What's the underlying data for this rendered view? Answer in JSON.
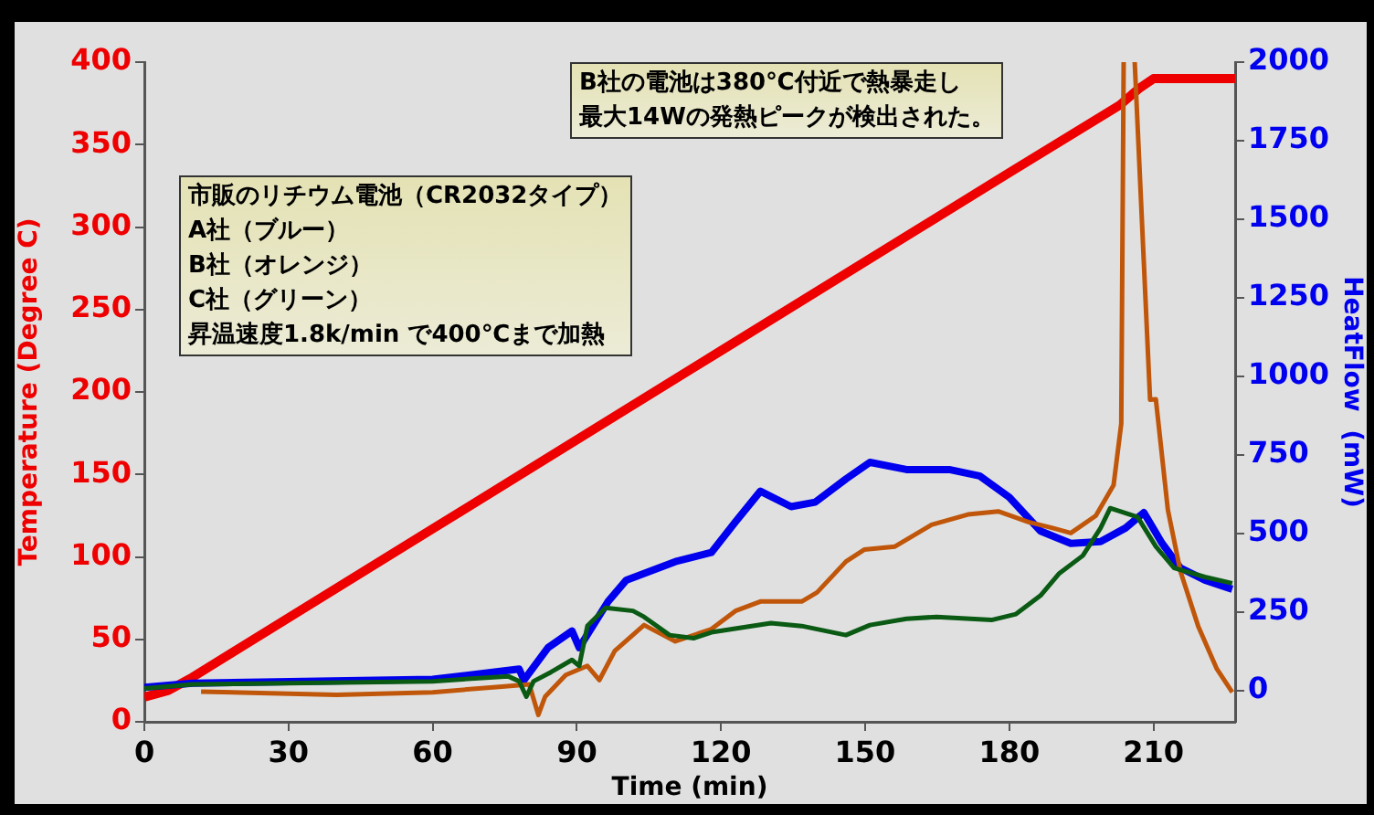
{
  "chart_data": {
    "type": "line",
    "xlabel": "Time (min)",
    "ylabel": "Temperature (Degree C)",
    "y2label": "HeatFlow  (mW)",
    "xlim": [
      0,
      227
    ],
    "xticks": [
      0,
      30,
      60,
      90,
      120,
      150,
      180,
      210
    ],
    "ylim": [
      0,
      400
    ],
    "yticks": [
      0,
      50,
      100,
      150,
      200,
      250,
      300,
      350,
      400
    ],
    "y2lim": [
      -100,
      2000
    ],
    "y2ticks": [
      0,
      250,
      500,
      750,
      1000,
      1250,
      1500,
      1750,
      2000
    ],
    "grid": false,
    "legend": false,
    "marker": "none",
    "line_style": "solid",
    "annotations": [
      "B社の電池は380℃付近で熱暴走し",
      "最大14Wの発熱ピークが検出された。",
      "市販のリチウム電池（CR2032タイプ）",
      "A社（ブルー）",
      "B社（オレンジ）",
      "C社（グリーン）",
      "昇温速度1.8k/min で400℃まで加熱"
    ],
    "series": [
      {
        "color": "#ee0000",
        "x": [
          0,
          5,
          10,
          60,
          120,
          180,
          203,
          207,
          210,
          227
        ],
        "values": [
          15,
          19,
          27,
          117,
          225,
          333,
          374,
          384,
          390,
          390
        ]
      },
      {
        "color": "#0000ee",
        "axis": "y2",
        "x": [
          0,
          10,
          60,
          78,
          79,
          84,
          89,
          90.5,
          96.5,
          100.3,
          110.5,
          118,
          123,
          128.2,
          134.6,
          139.6,
          146,
          151,
          158.6,
          167.5,
          173.8,
          180,
          186.5,
          192.8,
          199,
          204.2,
          208,
          211.8,
          215.6,
          220.7,
          226.4
        ],
        "values": [
          10,
          23,
          35,
          68,
          33,
          136,
          189,
          136,
          283,
          351,
          410,
          439,
          536,
          634,
          585,
          599,
          673,
          726,
          703,
          703,
          683,
          615,
          507,
          468,
          474,
          517,
          566,
          468,
          390,
          351,
          322
        ]
      },
      {
        "color": "#c0560a",
        "axis": "y2",
        "x": [
          11.8,
          40,
          60,
          75,
          80.1,
          82,
          83.4,
          87.7,
          92.2,
          94.7,
          97.9,
          104,
          108,
          110.5,
          118,
          123,
          128.2,
          136.8,
          140,
          146,
          149.8,
          156.2,
          163.8,
          171.4,
          177.7,
          184,
          189,
          192.8,
          198,
          201.7,
          203.3,
          203.8,
          205,
          206.1,
          209.3,
          210.5,
          213,
          215.6,
          219.3,
          223.2,
          226.4
        ],
        "values": [
          -4,
          -14,
          -6,
          13,
          19,
          -78,
          -20,
          49,
          78,
          33,
          126,
          208,
          176,
          156,
          195,
          253,
          283,
          283,
          312,
          410,
          448,
          458,
          527,
          560,
          570,
          536,
          517,
          501,
          556,
          653,
          849,
          2000,
          null,
          2000,
          925,
          927,
          575,
          380,
          205,
          68,
          -6
        ]
      },
      {
        "color": "#0a5a14",
        "axis": "y2",
        "x": [
          0,
          10,
          60,
          75.7,
          78,
          79.5,
          81,
          84.6,
          89,
          90.5,
          92.2,
          96,
          101.7,
          104,
          109.3,
          114.3,
          118,
          130.4,
          136.8,
          146,
          151,
          158.6,
          164.9,
          176.3,
          181.4,
          186.5,
          190.3,
          195.3,
          199,
          201,
          206.7,
          210.5,
          214.3,
          220.7,
          226.4
        ],
        "values": [
          6,
          19,
          29,
          45,
          29,
          -20,
          29,
          58,
          97,
          78,
          205,
          263,
          253,
          234,
          176,
          166,
          185,
          214,
          205,
          176,
          208,
          228,
          234,
          224,
          243,
          302,
          371,
          429,
          517,
          580,
          552,
          458,
          390,
          361,
          341
        ]
      }
    ]
  }
}
